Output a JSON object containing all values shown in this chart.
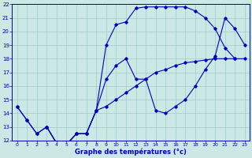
{
  "xlabel": "Graphe des températures (°c)",
  "bg_color": "#cce8e4",
  "grid_color": "#99cccc",
  "line_color": "#0000bb",
  "xmin": 0,
  "xmax": 23,
  "ymin": 12,
  "ymax": 22,
  "curve1_x": [
    0,
    1,
    2,
    3,
    4,
    5,
    6,
    7,
    8,
    9,
    10,
    11,
    12,
    13,
    14,
    15,
    16,
    17,
    18,
    19,
    20,
    21,
    22
  ],
  "curve1_y": [
    14.5,
    13.5,
    12.5,
    13.0,
    11.8,
    11.7,
    12.5,
    12.5,
    14.2,
    19.0,
    20.5,
    20.7,
    21.7,
    21.8,
    21.8,
    21.8,
    21.8,
    21.8,
    21.5,
    21.0,
    20.2,
    18.8,
    18.0
  ],
  "curve2_x": [
    0,
    1,
    2,
    3,
    4,
    5,
    6,
    7,
    8,
    9,
    10,
    11,
    12,
    13,
    14,
    15,
    16,
    17,
    18,
    19,
    20,
    21,
    22,
    23
  ],
  "curve2_y": [
    14.5,
    13.5,
    12.5,
    13.0,
    11.8,
    11.7,
    12.5,
    12.5,
    14.2,
    14.5,
    15.0,
    15.5,
    16.0,
    16.5,
    17.0,
    17.2,
    17.5,
    17.7,
    17.8,
    17.9,
    18.0,
    18.0,
    18.0,
    18.0
  ],
  "curve3_x": [
    3,
    4,
    5,
    6,
    7,
    8,
    9,
    10,
    11,
    12,
    13,
    14,
    15,
    16,
    17,
    18,
    19,
    20,
    21,
    22,
    23
  ],
  "curve3_y": [
    13.0,
    11.8,
    11.7,
    12.5,
    12.5,
    14.2,
    16.5,
    17.5,
    18.0,
    16.5,
    16.5,
    14.2,
    14.0,
    14.5,
    15.0,
    16.0,
    17.2,
    18.2,
    21.0,
    20.2,
    19.0
  ]
}
